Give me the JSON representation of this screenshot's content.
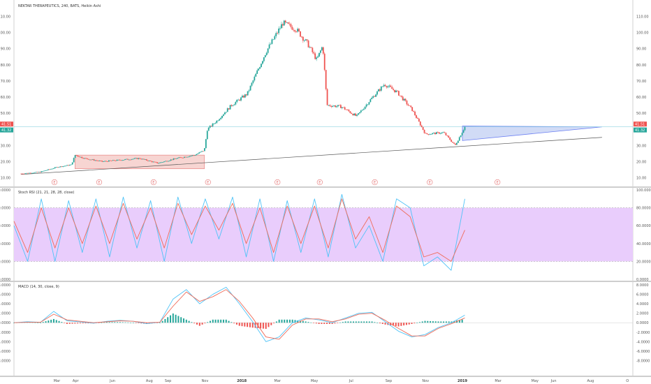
{
  "colors": {
    "up": "#26a69a",
    "down": "#ef5350",
    "stoch_k": "#4fc3f7",
    "stoch_d": "#ef6c5a",
    "stoch_band": "#e9cdfc",
    "hline": "#8fd3e0",
    "red_box": "#f4c7c3",
    "blue_tri": "#c9d5f5",
    "earnings": "#e57373"
  },
  "chart_data": [
    {
      "type": "candlestick",
      "title": "NEKTAR THERAPEUTICS, 240, BATS, Heikin Ashi",
      "ylim": [
        5,
        115
      ],
      "y_ticks": [
        "10.00",
        "20.00",
        "30.00",
        "40.00",
        "50.00",
        "60.00",
        "70.00",
        "80.00",
        "90.00",
        "100.00",
        "110.00"
      ],
      "last_price_labels": [
        "41.51",
        "41.32"
      ],
      "earnings_marker": "E",
      "earnings_count": 9,
      "price_path": [
        [
          "2017-01-01",
          12.5
        ],
        [
          "2017-02-01",
          13.5
        ],
        [
          "2017-03-01",
          16.5
        ],
        [
          "2017-03-25",
          18
        ],
        [
          "2017-03-31",
          24
        ],
        [
          "2017-04-15",
          22
        ],
        [
          "2017-05-15",
          20
        ],
        [
          "2017-06-15",
          21
        ],
        [
          "2017-07-15",
          22
        ],
        [
          "2017-08-15",
          19
        ],
        [
          "2017-09-15",
          22
        ],
        [
          "2017-10-15",
          24
        ],
        [
          "2017-10-31",
          27
        ],
        [
          "2017-11-05",
          40
        ],
        [
          "2017-11-20",
          45
        ],
        [
          "2017-12-15",
          55
        ],
        [
          "2018-01-10",
          62
        ],
        [
          "2018-02-10",
          88
        ],
        [
          "2018-03-10",
          106
        ],
        [
          "2018-04-01",
          102
        ],
        [
          "2018-04-20",
          93
        ],
        [
          "2018-05-05",
          83
        ],
        [
          "2018-05-15",
          92
        ],
        [
          "2018-05-22",
          55
        ],
        [
          "2018-06-15",
          54
        ],
        [
          "2018-07-10",
          48
        ],
        [
          "2018-08-01",
          58
        ],
        [
          "2018-08-25",
          68
        ],
        [
          "2018-09-15",
          63
        ],
        [
          "2018-10-10",
          52
        ],
        [
          "2018-11-01",
          37
        ],
        [
          "2018-12-01",
          38
        ],
        [
          "2018-12-20",
          30
        ],
        [
          "2019-01-05",
          41.5
        ]
      ],
      "trendline": {
        "start": [
          "2017-01-01",
          12
        ],
        "end": [
          "2019-08-20",
          35
        ]
      },
      "red_box": {
        "x": [
          "2017-03-31",
          "2017-10-31"
        ],
        "y": [
          24,
          15.5
        ]
      },
      "wedge": {
        "points": [
          [
            "2019-01-01",
            42
          ],
          [
            "2019-08-20",
            41.5
          ],
          [
            "2019-01-01",
            33
          ]
        ]
      },
      "hline": 41.5
    },
    {
      "type": "line",
      "title": "Stoch RSI (21, 21, 28, 28, close)",
      "ylim": [
        0,
        100
      ],
      "y_ticks": [
        "0.0000",
        "20.0000",
        "40.0000",
        "60.0000",
        "80.0000",
        "100.0000"
      ],
      "band": [
        20,
        80
      ],
      "series": [
        {
          "values": [
            60,
            20,
            90,
            20,
            88,
            30,
            90,
            25,
            92,
            35,
            88,
            20,
            92,
            40,
            90,
            45,
            92,
            25,
            90,
            20,
            88,
            30,
            90,
            25,
            95,
            35,
            60,
            20,
            90,
            80,
            15,
            25,
            10,
            90
          ]
        },
        {
          "values": [
            65,
            30,
            80,
            35,
            80,
            40,
            82,
            40,
            85,
            45,
            80,
            35,
            85,
            50,
            82,
            55,
            85,
            40,
            80,
            30,
            82,
            40,
            82,
            35,
            90,
            45,
            70,
            30,
            82,
            70,
            25,
            30,
            20,
            55
          ]
        }
      ]
    },
    {
      "type": "bar+line",
      "title": "MACD (14, 30, close, 9)",
      "ylim": [
        -10,
        8
      ],
      "y_ticks": [
        "8.0000",
        "6.0000",
        "4.0000",
        "2.0000",
        "0.0000",
        "-2.0000",
        "-4.0000",
        "-6.0000",
        "-8.0000"
      ],
      "series": [
        {
          "values": [
            0,
            0.2,
            0.1,
            2.4,
            0.4,
            0.2,
            -0.1,
            0.3,
            0.5,
            0.3,
            -0.2,
            0.1,
            5,
            7,
            4,
            6,
            7.5,
            4,
            0.2,
            -4,
            -3,
            0,
            1,
            0.6,
            0,
            1,
            2,
            2.2,
            0.2,
            -1.8,
            -3,
            -2.5,
            -1,
            0,
            1.6
          ]
        },
        {
          "values": [
            0,
            0.1,
            0.1,
            1.8,
            0.6,
            0.3,
            0,
            0.2,
            0.4,
            0.3,
            0,
            0.1,
            3.5,
            6.5,
            4.5,
            5.5,
            7,
            4.5,
            1,
            -3,
            -3.5,
            -0.5,
            0.8,
            0.8,
            0.2,
            0.8,
            1.8,
            2,
            0.5,
            -1.2,
            -2.8,
            -2.8,
            -1.2,
            -0.2,
            1
          ]
        }
      ]
    }
  ],
  "x_axis": {
    "ticks": [
      "Mar",
      "Apr",
      "Jun",
      "Aug",
      "Sep",
      "Nov",
      "2018",
      "Mar",
      "May",
      "Jul",
      "Sep",
      "Nov",
      "2019",
      "Mar",
      "May",
      "Jun",
      "Aug",
      "O"
    ],
    "start": "2016-12-20",
    "end": "2019-10-10"
  }
}
